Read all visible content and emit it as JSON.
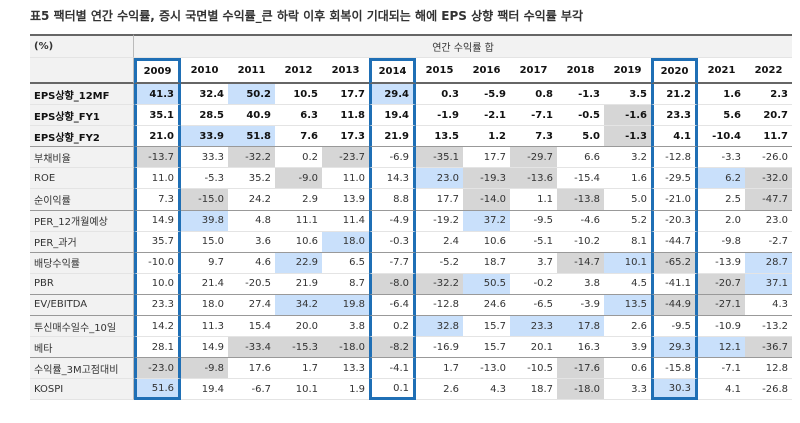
{
  "header": {
    "title": "표5 팩터별 연간 수익률, 증시 국면별 수익률_큰 하락 이후 회복이 기대되는 해에 EPS 상향 팩터 수익률 부각",
    "unit": "(%)",
    "group": "연간 수익률 합"
  },
  "table": {
    "columns": [
      "2009",
      "2010",
      "2011",
      "2012",
      "2013",
      "2014",
      "2015",
      "2016",
      "2017",
      "2018",
      "2019",
      "2020",
      "2021",
      "2022"
    ],
    "boxed_columns": [
      0,
      5,
      11
    ],
    "rows": [
      {
        "label": "EPS상향_12MF",
        "bold": true,
        "values": [
          "41.3",
          "32.4",
          "50.2",
          "10.5",
          "17.7",
          "29.4",
          "0.3",
          "-5.9",
          "0.8",
          "-1.3",
          "3.5",
          "21.2",
          "1.6",
          "2.3"
        ],
        "blue": [
          0,
          2,
          5
        ],
        "gray": []
      },
      {
        "label": "EPS상향_FY1",
        "bold": true,
        "values": [
          "35.1",
          "28.5",
          "40.9",
          "6.3",
          "11.8",
          "19.4",
          "-1.9",
          "-2.1",
          "-7.1",
          "-0.5",
          "-1.6",
          "23.3",
          "5.6",
          "20.7"
        ],
        "blue": [],
        "gray": [
          10
        ]
      },
      {
        "label": "EPS상향_FY2",
        "bold": true,
        "values": [
          "21.0",
          "33.9",
          "51.8",
          "7.6",
          "17.3",
          "21.9",
          "13.5",
          "1.2",
          "7.3",
          "5.0",
          "-1.3",
          "4.1",
          "-10.4",
          "11.7"
        ],
        "blue": [
          1,
          2
        ],
        "gray": [
          10
        ]
      },
      {
        "label": "부채비율",
        "values": [
          "-13.7",
          "33.3",
          "-32.2",
          "0.2",
          "-23.7",
          "-6.9",
          "-35.1",
          "17.7",
          "-29.7",
          "6.6",
          "3.2",
          "-12.8",
          "-3.3",
          "-26.0"
        ],
        "blue": [],
        "gray": [
          0,
          2,
          4,
          6,
          8
        ]
      },
      {
        "label": "ROE",
        "values": [
          "11.0",
          "-5.3",
          "35.2",
          "-9.0",
          "11.0",
          "14.3",
          "23.0",
          "-19.3",
          "-13.6",
          "-15.4",
          "1.6",
          "-29.5",
          "6.2",
          "-32.0"
        ],
        "blue": [
          6,
          12
        ],
        "gray": [
          3,
          7,
          8,
          13
        ]
      },
      {
        "label": "순이익률",
        "values": [
          "7.3",
          "-15.0",
          "24.2",
          "2.9",
          "13.9",
          "8.8",
          "17.7",
          "-14.0",
          "1.1",
          "-13.8",
          "5.0",
          "-21.0",
          "2.5",
          "-47.7"
        ],
        "blue": [],
        "gray": [
          1,
          7,
          9,
          13
        ]
      },
      {
        "label": "PER_12개월예상",
        "values": [
          "14.9",
          "39.8",
          "4.8",
          "11.1",
          "11.4",
          "-4.9",
          "-19.2",
          "37.2",
          "-9.5",
          "-4.6",
          "5.2",
          "-20.3",
          "2.0",
          "23.0"
        ],
        "blue": [
          1,
          7
        ],
        "gray": []
      },
      {
        "label": "PER_과거",
        "values": [
          "35.7",
          "15.0",
          "3.6",
          "10.6",
          "18.0",
          "-0.3",
          "2.4",
          "10.6",
          "-5.1",
          "-10.2",
          "8.1",
          "-44.7",
          "-9.8",
          "-2.7"
        ],
        "blue": [
          4
        ],
        "gray": []
      },
      {
        "label": "배당수익률",
        "values": [
          "-10.0",
          "9.7",
          "4.6",
          "22.9",
          "6.5",
          "-7.7",
          "-5.2",
          "18.7",
          "3.7",
          "-14.7",
          "10.1",
          "-65.2",
          "-13.9",
          "28.7"
        ],
        "blue": [
          3,
          10,
          13
        ],
        "gray": [
          9,
          11
        ]
      },
      {
        "label": "PBR",
        "values": [
          "10.0",
          "21.4",
          "-20.5",
          "21.9",
          "8.7",
          "-8.0",
          "-32.2",
          "50.5",
          "-0.2",
          "3.8",
          "4.5",
          "-41.1",
          "-20.7",
          "37.1"
        ],
        "blue": [
          7,
          13
        ],
        "gray": [
          5,
          6,
          12
        ]
      },
      {
        "label": "EV/EBITDA",
        "values": [
          "23.3",
          "18.0",
          "27.4",
          "34.2",
          "19.8",
          "-6.4",
          "-12.8",
          "24.6",
          "-6.5",
          "-3.9",
          "13.5",
          "-44.9",
          "-27.1",
          "4.3"
        ],
        "blue": [
          3,
          4,
          10
        ],
        "gray": [
          11,
          12
        ]
      },
      {
        "label": "투신매수일수_10일",
        "values": [
          "14.2",
          "11.3",
          "15.4",
          "20.0",
          "3.8",
          "0.2",
          "32.8",
          "15.7",
          "23.3",
          "17.8",
          "2.6",
          "-9.5",
          "-10.9",
          "-13.2"
        ],
        "blue": [
          6,
          8,
          9
        ],
        "gray": []
      },
      {
        "label": "베타",
        "values": [
          "28.1",
          "14.9",
          "-33.4",
          "-15.3",
          "-18.0",
          "-8.2",
          "-16.9",
          "15.7",
          "20.1",
          "16.3",
          "3.9",
          "29.3",
          "12.1",
          "-36.7"
        ],
        "blue": [
          11,
          12
        ],
        "gray": [
          2,
          3,
          4,
          5,
          13
        ]
      },
      {
        "label": "수익률_3M고점대비",
        "values": [
          "-23.0",
          "-9.8",
          "17.6",
          "1.7",
          "13.3",
          "-4.1",
          "1.7",
          "-13.0",
          "-10.5",
          "-17.6",
          "0.6",
          "-15.8",
          "-7.1",
          "12.8"
        ],
        "blue": [],
        "gray": [
          0,
          1,
          9
        ]
      },
      {
        "label": "KOSPI",
        "values": [
          "51.6",
          "19.4",
          "-6.7",
          "10.1",
          "1.9",
          "0.1",
          "2.6",
          "4.3",
          "18.7",
          "-18.0",
          "3.3",
          "30.3",
          "4.1",
          "-26.8"
        ],
        "blue": [
          0,
          11
        ],
        "gray": [
          9
        ]
      }
    ]
  }
}
